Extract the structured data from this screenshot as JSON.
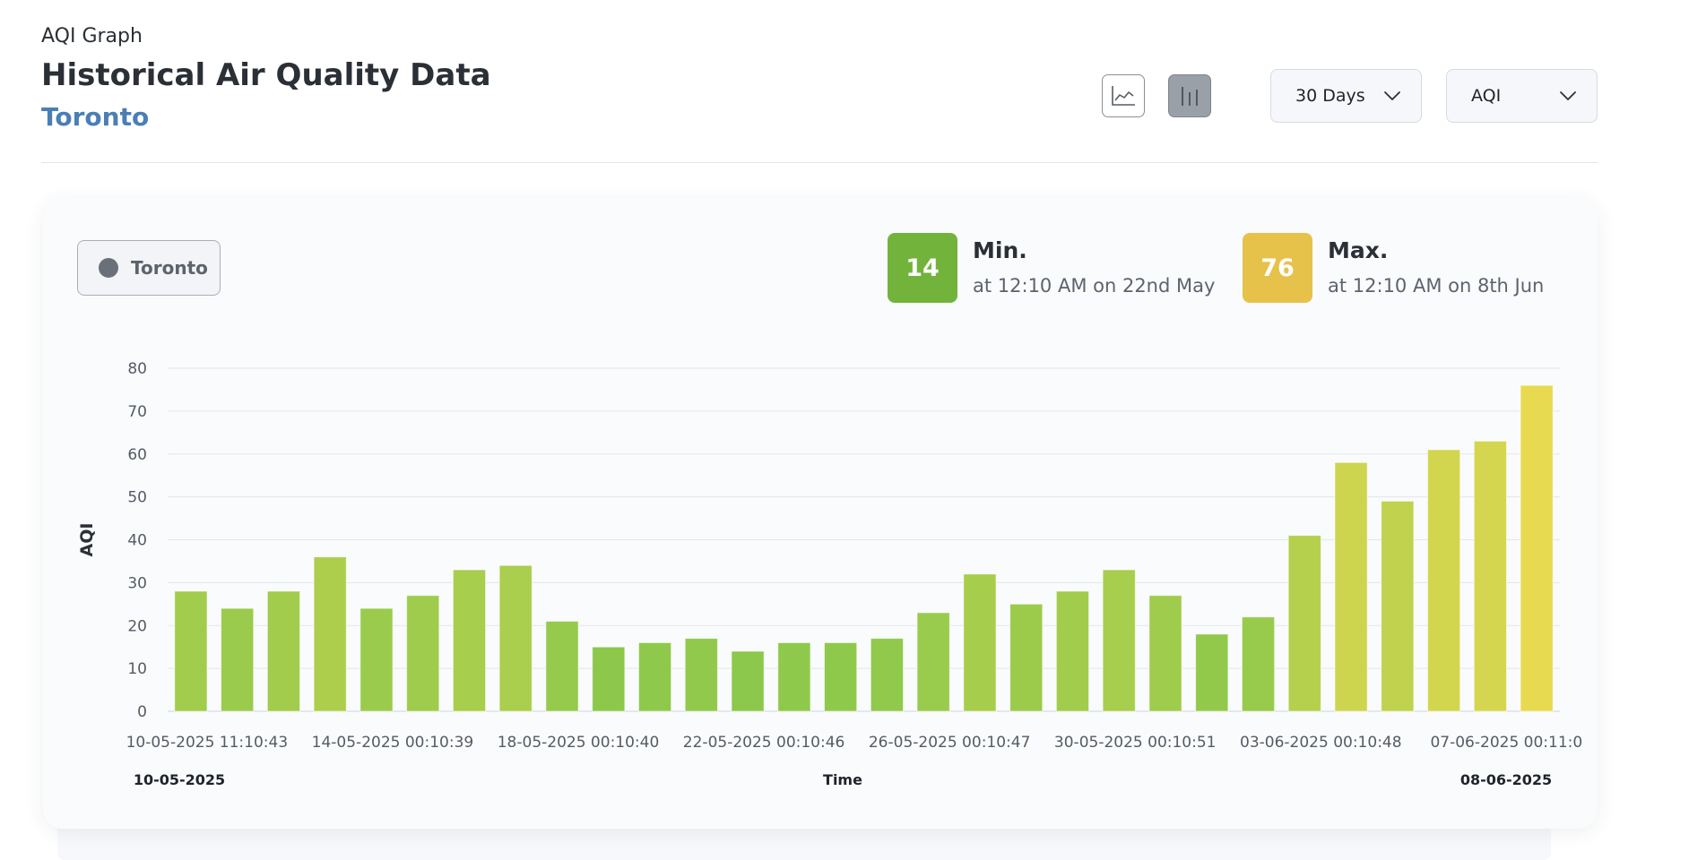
{
  "header": {
    "eyebrow": "AQI Graph",
    "title": "Historical Air Quality Data",
    "city": "Toronto"
  },
  "toolbar": {
    "line_view_icon": "line-chart-icon",
    "bar_view_icon": "bar-chart-icon",
    "range_select": "30 Days",
    "metric_select": "AQI"
  },
  "legend": {
    "location": "Toronto"
  },
  "stats": {
    "min": {
      "value": "14",
      "label": "Min.",
      "detail": "at 12:10 AM on 22nd May",
      "color": "#72b33c"
    },
    "max": {
      "value": "76",
      "label": "Max.",
      "detail": "at 12:10 AM on 8th Jun",
      "color": "#e6c24a"
    }
  },
  "chart_data": {
    "type": "bar",
    "ylabel": "AQI",
    "xlabel": "Time",
    "ylim": [
      0,
      80
    ],
    "yticks": [
      0,
      10,
      20,
      30,
      40,
      50,
      60,
      70,
      80
    ],
    "grid": true,
    "range_start": "10-05-2025",
    "range_end": "08-06-2025",
    "tick_labels": [
      {
        "index": 0,
        "label": "10-05-2025 11:10:43"
      },
      {
        "index": 4,
        "label": "14-05-2025 00:10:39"
      },
      {
        "index": 8,
        "label": "18-05-2025 00:10:40"
      },
      {
        "index": 12,
        "label": "22-05-2025 00:10:46"
      },
      {
        "index": 16,
        "label": "26-05-2025 00:10:47"
      },
      {
        "index": 20,
        "label": "30-05-2025 00:10:51"
      },
      {
        "index": 24,
        "label": "03-06-2025 00:10:48"
      },
      {
        "index": 28,
        "label": "07-06-2025 00:11:0"
      }
    ],
    "values": [
      28,
      24,
      28,
      36,
      24,
      27,
      33,
      34,
      21,
      15,
      16,
      17,
      14,
      16,
      16,
      17,
      23,
      32,
      25,
      28,
      33,
      27,
      18,
      22,
      41,
      58,
      49,
      61,
      63,
      76
    ]
  }
}
